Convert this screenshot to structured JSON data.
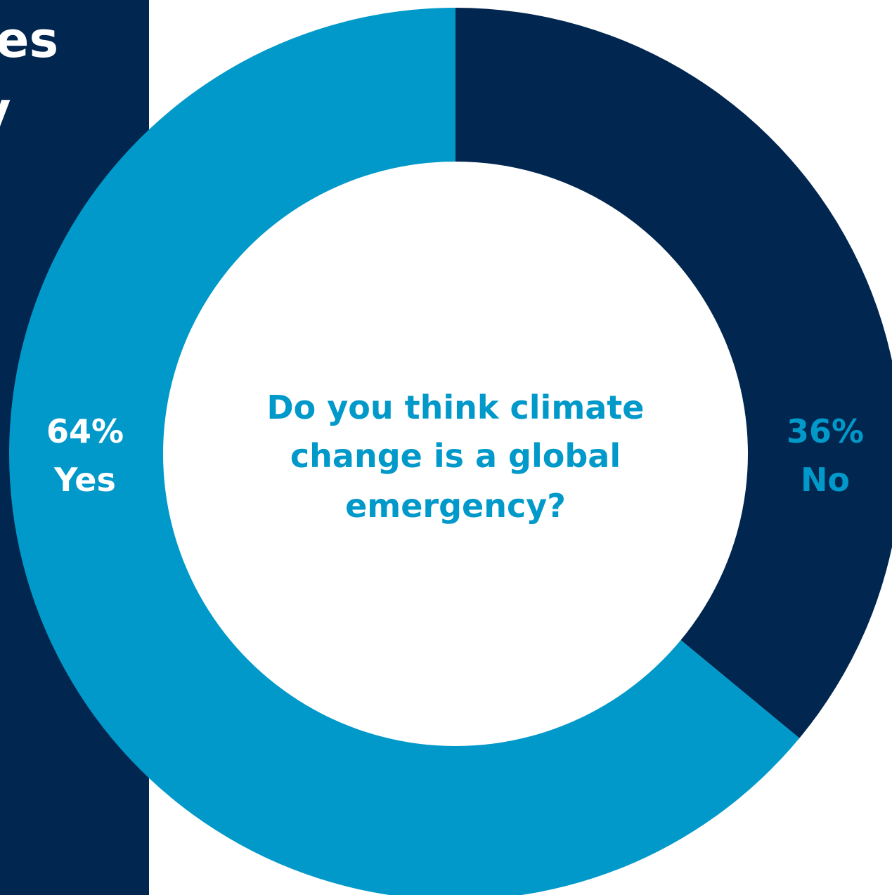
{
  "side_panel": {
    "line1_fragment": "es",
    "line2_fragment": "y",
    "color": "#01264f"
  },
  "chart_data": {
    "type": "pie",
    "center_text": [
      "Do you think climate",
      "change is a global",
      "emergency?"
    ],
    "slices": [
      {
        "name": "No",
        "value": 36,
        "label_pct": "36%",
        "label_name": "No",
        "color": "#01264f",
        "label_color": "#0199c9"
      },
      {
        "name": "Yes",
        "value": 64,
        "label_pct": "64%",
        "label_name": "Yes",
        "color": "#0199c9",
        "label_color": "#ffffff"
      }
    ],
    "start": "top",
    "direction": "clockwise",
    "style": "donut"
  }
}
